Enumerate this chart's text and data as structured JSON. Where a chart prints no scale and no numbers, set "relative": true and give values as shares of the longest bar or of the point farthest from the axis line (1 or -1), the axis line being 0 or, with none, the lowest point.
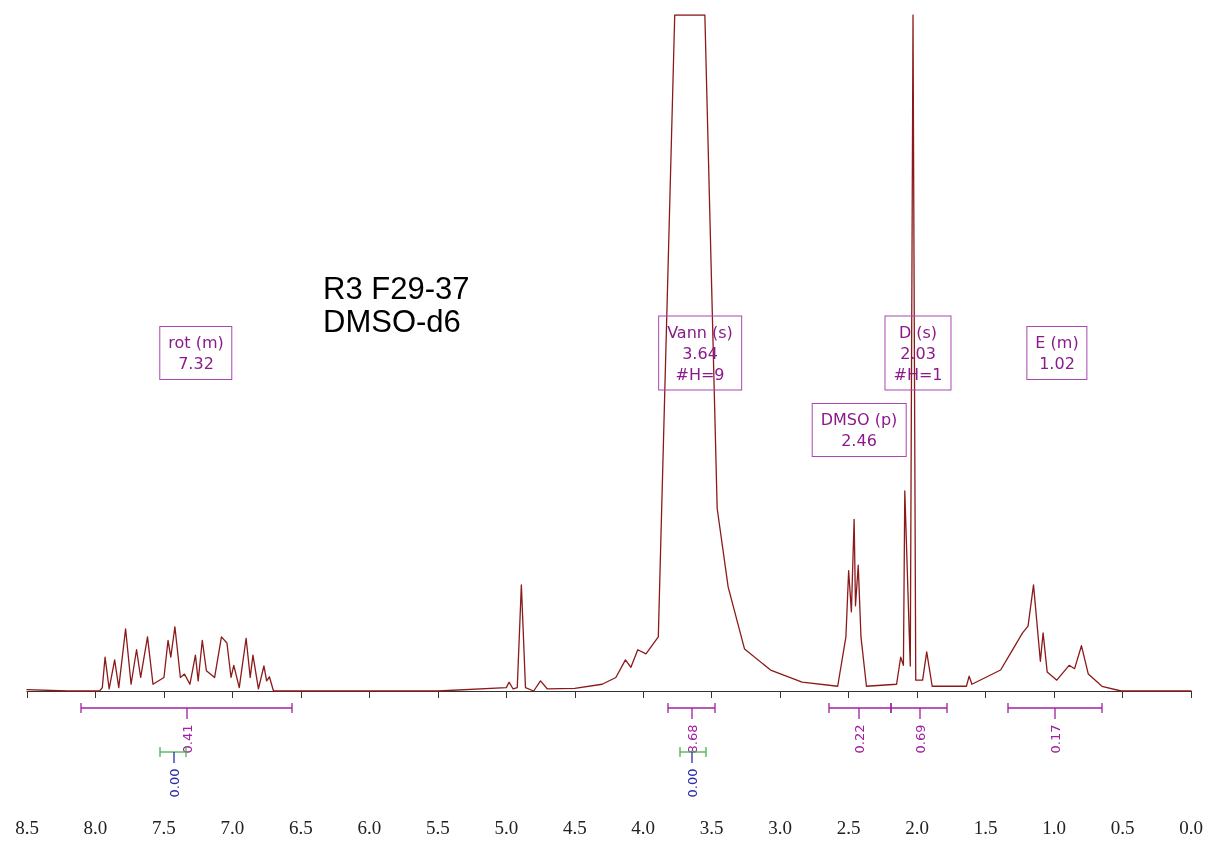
{
  "chart_data": {
    "type": "line",
    "title": "R3 F29-37",
    "subtitle": "DMSO-d6",
    "relative": true,
    "xlim": [
      8.5,
      0.0
    ],
    "xticks": [
      {
        "value": 8.5,
        "label": "8.5"
      },
      {
        "value": 8,
        "label": "8.0"
      },
      {
        "value": 7.5,
        "label": "7.5"
      },
      {
        "value": 7,
        "label": "7.0"
      },
      {
        "value": 6.5,
        "label": "6.5"
      },
      {
        "value": 6,
        "label": "6.0"
      },
      {
        "value": 5.5,
        "label": "5.5"
      },
      {
        "value": 5,
        "label": "5.0"
      },
      {
        "value": 4.5,
        "label": "4.5"
      },
      {
        "value": 4,
        "label": "4.0"
      },
      {
        "value": 3.5,
        "label": "3.5"
      },
      {
        "value": 3,
        "label": "3.0"
      },
      {
        "value": 2.5,
        "label": "2.5"
      },
      {
        "value": 2,
        "label": "2.0"
      },
      {
        "value": 1.5,
        "label": "1.5"
      },
      {
        "value": 1,
        "label": "1.0"
      },
      {
        "value": 0.5,
        "label": "0.5"
      },
      {
        "value": 0,
        "label": "0.0"
      }
    ],
    "tick_labels": "x",
    "grid": false,
    "line_style": "solid",
    "series": [
      {
        "color": "#8b1a1a",
        "x": [
          8.5,
          8.2,
          7.97,
          7.95,
          7.93,
          7.9,
          7.86,
          7.83,
          7.78,
          7.74,
          7.7,
          7.67,
          7.62,
          7.58,
          7.5,
          7.47,
          7.45,
          7.42,
          7.38,
          7.35,
          7.31,
          7.27,
          7.25,
          7.22,
          7.19,
          7.13,
          7.08,
          7.04,
          7.01,
          6.99,
          6.95,
          6.9,
          6.87,
          6.85,
          6.81,
          6.77,
          6.75,
          6.73,
          6.7,
          6.0,
          5.5,
          5.0,
          4.98,
          4.95,
          4.92,
          4.89,
          4.86,
          4.8,
          4.75,
          4.7,
          4.5,
          4.3,
          4.2,
          4.13,
          4.09,
          4.04,
          3.98,
          3.89,
          3.77,
          3.64,
          3.55,
          3.46,
          3.38,
          3.26,
          3.07,
          2.84,
          2.58,
          2.52,
          2.5,
          2.48,
          2.46,
          2.45,
          2.43,
          2.41,
          2.37,
          2.15,
          2.12,
          2.1,
          2.09,
          2.05,
          2.03,
          2.01,
          1.96,
          1.93,
          1.89,
          1.64,
          1.62,
          1.6,
          1.39,
          1.23,
          1.19,
          1.15,
          1.1,
          1.08,
          1.05,
          0.98,
          0.89,
          0.85,
          0.8,
          0.75,
          0.65,
          0.51,
          0.0
        ],
        "values": [
          0.002,
          0.0,
          0.0,
          0.005,
          0.05,
          0.003,
          0.046,
          0.005,
          0.092,
          0.01,
          0.061,
          0.02,
          0.08,
          0.01,
          0.02,
          0.075,
          0.05,
          0.095,
          0.02,
          0.025,
          0.01,
          0.053,
          0.015,
          0.075,
          0.03,
          0.02,
          0.08,
          0.071,
          0.02,
          0.038,
          0.005,
          0.078,
          0.02,
          0.053,
          0.003,
          0.037,
          0.015,
          0.021,
          0.0,
          0.0,
          0.0,
          0.005,
          0.013,
          0.003,
          0.005,
          0.157,
          0.005,
          0.0,
          0.015,
          0.003,
          0.004,
          0.01,
          0.02,
          0.046,
          0.035,
          0.061,
          0.055,
          0.08,
          1.0,
          1.0,
          1.0,
          0.27,
          0.154,
          0.062,
          0.031,
          0.013,
          0.007,
          0.08,
          0.178,
          0.117,
          0.254,
          0.126,
          0.186,
          0.08,
          0.007,
          0.01,
          0.05,
          0.038,
          0.296,
          0.037,
          1.0,
          0.016,
          0.016,
          0.058,
          0.007,
          0.007,
          0.022,
          0.01,
          0.031,
          0.086,
          0.096,
          0.157,
          0.044,
          0.086,
          0.028,
          0.016,
          0.038,
          0.033,
          0.067,
          0.025,
          0.007,
          0.0,
          0.0
        ]
      }
    ],
    "annotations": [
      "rot (m)\n7.32",
      "Vann (s)\n3.64\n#H=9",
      "DMSO (p)\n2.46",
      "D (s)\n2.03\n#H=1",
      "E (m)\n1.02",
      "0.41",
      "8.68",
      "0.22",
      "0.69",
      "0.17",
      "0.00",
      "0.00"
    ]
  }
}
